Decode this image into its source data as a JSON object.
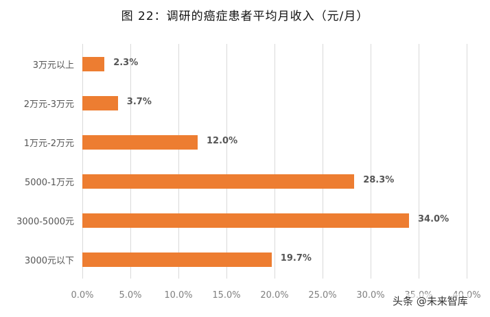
{
  "title": "图 22：调研的癌症患者平均月收入（元/月）",
  "watermark": "头条 @未来智库",
  "colors": {
    "bar": "#ed7d31",
    "grid": "#d9d9d9",
    "text": "#555555"
  },
  "chart_data": {
    "type": "bar",
    "orientation": "horizontal",
    "title": "图 22：调研的癌症患者平均月收入（元/月）",
    "xlabel": "",
    "ylabel": "",
    "categories": [
      "3万元以上",
      "2万元-3万元",
      "1万元-2万元",
      "5000-1万元",
      "3000-5000元",
      "3000元以下"
    ],
    "values": [
      2.3,
      3.7,
      12.0,
      28.3,
      34.0,
      19.7
    ],
    "value_labels": [
      "2.3%",
      "3.7%",
      "12.0%",
      "28.3%",
      "34.0%",
      "19.7%"
    ],
    "xlim": [
      0,
      40
    ],
    "x_ticks": [
      "0.0%",
      "5.0%",
      "10.0%",
      "15.0%",
      "20.0%",
      "25.0%",
      "30.0%",
      "35.0%",
      "40.0%"
    ],
    "grid": true,
    "legend": null
  }
}
